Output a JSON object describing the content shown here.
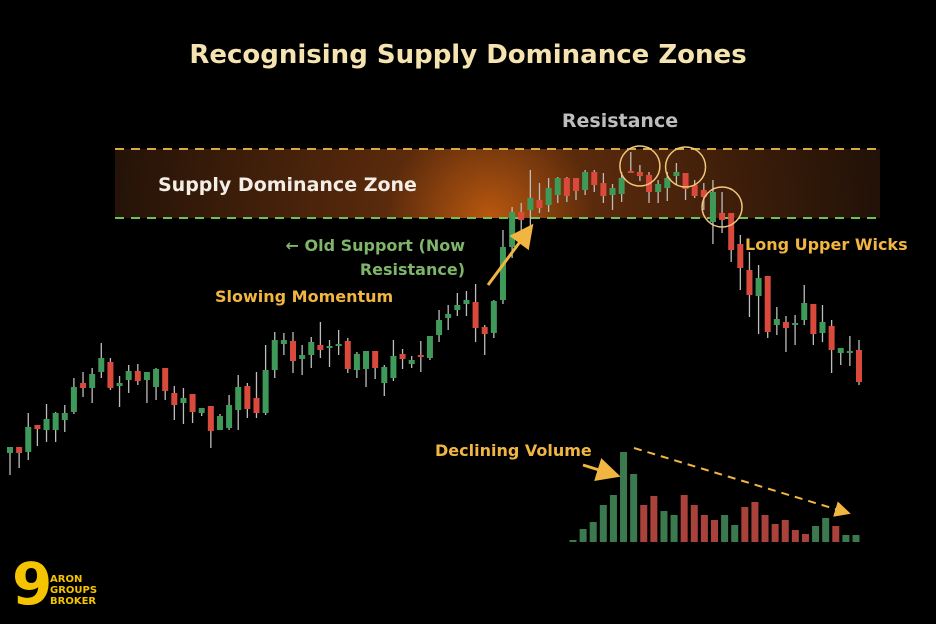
{
  "title": "Recognising Supply Dominance Zones",
  "labels": {
    "resistance": "Resistance",
    "zone": "Supply Dominance Zone",
    "old_support": "← Old Support (Now Resistance)",
    "slowing": "Slowing Momentum",
    "wicks": "Long Upper Wicks",
    "volume": "Declining Volume"
  },
  "logo": {
    "text": "9 ARON GROUPS BROKER"
  },
  "colors": {
    "up": "#3f9a5a",
    "down": "#d9493c",
    "vol_up": "#3b7a4e",
    "vol_down": "#a8423a",
    "zone_glow": "#b9580f",
    "resistance_line": "#d8a84a",
    "support_line": "#6fbf5a",
    "annotation": "#f1b642",
    "title": "#f5e3b0"
  },
  "chart_data": {
    "type": "candlestick",
    "title": "Recognising Supply Dominance Zones",
    "levels": {
      "resistance": 451,
      "support": 382
    },
    "ohlc": [
      [
        147,
        152,
        125,
        153
      ],
      [
        153,
        153,
        132,
        147
      ],
      [
        148,
        187,
        140,
        173
      ],
      [
        175,
        175,
        154,
        171
      ],
      [
        170,
        196,
        158,
        181
      ],
      [
        170,
        188,
        158,
        187
      ],
      [
        180,
        195,
        168,
        187
      ],
      [
        188,
        222,
        186,
        213
      ],
      [
        217,
        228,
        203,
        212
      ],
      [
        212,
        232,
        197,
        226
      ],
      [
        228,
        257,
        222,
        242
      ],
      [
        238,
        242,
        210,
        212
      ],
      [
        214,
        224,
        193,
        217
      ],
      [
        220,
        235,
        207,
        229
      ],
      [
        229,
        236,
        215,
        219
      ],
      [
        220,
        228,
        197,
        228
      ],
      [
        213,
        232,
        200,
        231
      ],
      [
        232,
        232,
        200,
        209
      ],
      [
        207,
        214,
        180,
        195
      ],
      [
        197,
        212,
        176,
        202
      ],
      [
        206,
        206,
        177,
        188
      ],
      [
        187,
        192,
        184,
        192
      ],
      [
        194,
        194,
        152,
        169
      ],
      [
        170,
        186,
        170,
        184
      ],
      [
        172,
        205,
        170,
        195
      ],
      [
        190,
        225,
        170,
        213
      ],
      [
        214,
        217,
        182,
        191
      ],
      [
        202,
        228,
        182,
        187
      ],
      [
        187,
        255,
        185,
        230
      ],
      [
        230,
        268,
        222,
        260
      ],
      [
        256,
        267,
        245,
        260
      ],
      [
        259,
        268,
        227,
        239
      ],
      [
        241,
        255,
        225,
        245
      ],
      [
        245,
        263,
        232,
        258
      ],
      [
        255,
        278,
        242,
        250
      ],
      [
        252,
        260,
        233,
        254
      ],
      [
        254,
        270,
        245,
        256
      ],
      [
        259,
        262,
        227,
        231
      ],
      [
        230,
        248,
        222,
        246
      ],
      [
        231,
        249,
        213,
        249
      ],
      [
        249,
        249,
        221,
        232
      ],
      [
        217,
        235,
        204,
        233
      ],
      [
        222,
        260,
        219,
        244
      ],
      [
        246,
        251,
        231,
        241
      ],
      [
        236,
        244,
        232,
        240
      ],
      [
        245,
        259,
        228,
        243
      ],
      [
        242,
        264,
        240,
        264
      ],
      [
        265,
        290,
        258,
        280
      ],
      [
        282,
        295,
        270,
        286
      ],
      [
        290,
        307,
        284,
        295
      ],
      [
        296,
        309,
        284,
        300
      ],
      [
        298,
        316,
        258,
        272
      ],
      [
        273,
        275,
        245,
        266
      ],
      [
        267,
        300,
        262,
        299
      ],
      [
        300,
        370,
        296,
        353
      ],
      [
        353,
        393,
        342,
        388
      ],
      [
        388,
        397,
        362,
        380
      ],
      [
        390,
        430,
        368,
        402
      ],
      [
        400,
        417,
        387,
        392
      ],
      [
        395,
        422,
        388,
        412
      ],
      [
        405,
        423,
        397,
        422
      ],
      [
        422,
        423,
        398,
        404
      ],
      [
        422,
        422,
        400,
        409
      ],
      [
        410,
        430,
        405,
        428
      ],
      [
        428,
        430,
        408,
        415
      ],
      [
        417,
        427,
        397,
        404
      ],
      [
        405,
        416,
        390,
        412
      ],
      [
        406,
        428,
        398,
        422
      ],
      [
        429,
        448,
        427,
        427
      ],
      [
        428,
        435,
        419,
        424
      ],
      [
        425,
        428,
        397,
        408
      ],
      [
        408,
        420,
        397,
        416
      ],
      [
        412,
        428,
        399,
        422
      ],
      [
        424,
        437,
        415,
        428
      ],
      [
        427,
        427,
        400,
        411
      ],
      [
        415,
        420,
        402,
        404
      ],
      [
        410,
        417,
        390,
        403
      ],
      [
        378,
        420,
        356,
        408
      ],
      [
        387,
        408,
        367,
        380
      ],
      [
        387,
        387,
        338,
        350
      ],
      [
        356,
        365,
        310,
        332
      ],
      [
        330,
        348,
        283,
        305
      ],
      [
        304,
        335,
        266,
        322
      ],
      [
        324,
        324,
        262,
        268
      ],
      [
        275,
        293,
        265,
        281
      ],
      [
        278,
        284,
        248,
        272
      ],
      [
        275,
        285,
        255,
        277
      ],
      [
        280,
        315,
        275,
        297
      ],
      [
        296,
        296,
        255,
        266
      ],
      [
        267,
        295,
        258,
        278
      ],
      [
        274,
        280,
        227,
        250
      ],
      [
        247,
        252,
        235,
        252
      ],
      [
        247,
        264,
        234,
        249
      ],
      [
        250,
        260,
        215,
        218
      ]
    ],
    "volume": {
      "values": [
        1,
        13,
        20,
        37,
        47,
        90,
        68,
        37,
        46,
        31,
        27,
        47,
        37,
        27,
        22,
        27,
        17,
        35,
        40,
        27,
        18,
        22,
        12,
        8,
        16,
        24,
        16,
        7,
        7
      ],
      "direction": [
        "up",
        "up",
        "up",
        "up",
        "up",
        "up",
        "up",
        "down",
        "down",
        "up",
        "up",
        "down",
        "down",
        "down",
        "down",
        "up",
        "up",
        "down",
        "down",
        "down",
        "down",
        "down",
        "down",
        "down",
        "up",
        "up",
        "down",
        "up",
        "up"
      ]
    },
    "highlighted_wicks": [
      69,
      74,
      78
    ]
  }
}
